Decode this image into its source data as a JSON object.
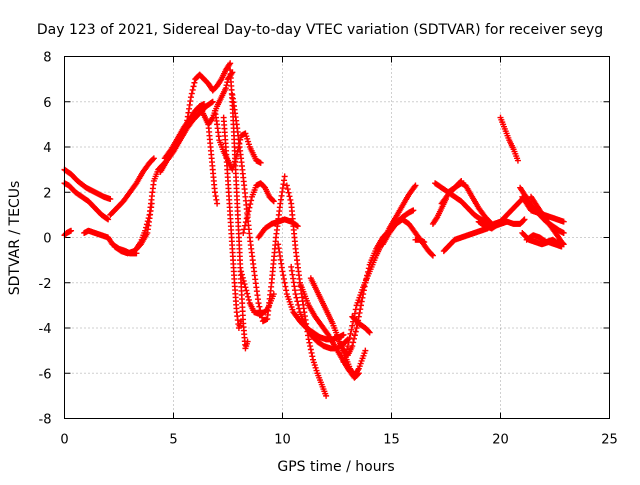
{
  "chart_data": {
    "type": "scatter",
    "title": "Day 123 of 2021, Sidereal Day-to-day VTEC variation (SDTVAR) for receiver seyg",
    "xlabel": "GPS time / hours",
    "ylabel": "SDTVAR / TECUs",
    "xlim": [
      0,
      25
    ],
    "ylim": [
      -8,
      8
    ],
    "x_ticks": [
      "0",
      "5",
      "10",
      "15",
      "20",
      "25"
    ],
    "y_ticks": [
      "-8",
      "-6",
      "-4",
      "-2",
      "0",
      "2",
      "4",
      "6",
      "8"
    ],
    "grid": true,
    "legend": "none",
    "marker": "plus",
    "color": "#ff0000",
    "series": [
      {
        "x": [
          0.0,
          0.3,
          0.6,
          1.0,
          1.4,
          1.8,
          2.1
        ],
        "y": [
          3.0,
          2.8,
          2.5,
          2.2,
          2.0,
          1.8,
          1.7
        ]
      },
      {
        "x": [
          0.0,
          0.2,
          0.5,
          0.8,
          1.1,
          1.4,
          1.7,
          2.0
        ],
        "y": [
          2.4,
          2.3,
          2.0,
          1.8,
          1.6,
          1.3,
          1.0,
          0.8
        ]
      },
      {
        "x": [
          0.0,
          0.1,
          0.3
        ],
        "y": [
          0.1,
          0.2,
          0.3
        ]
      },
      {
        "x": [
          0.9,
          1.1,
          1.4,
          1.7,
          2.0,
          2.2,
          2.5,
          2.8,
          3.0,
          3.3
        ],
        "y": [
          0.2,
          0.3,
          0.2,
          0.1,
          0.0,
          -0.3,
          -0.5,
          -0.6,
          -0.7,
          -0.7
        ]
      },
      {
        "x": [
          2.1,
          2.4,
          2.7,
          3.0,
          3.3,
          3.6,
          3.9,
          4.1
        ],
        "y": [
          1.0,
          1.3,
          1.6,
          2.0,
          2.4,
          2.9,
          3.3,
          3.5
        ]
      },
      {
        "x": [
          2.3,
          2.6,
          2.9,
          3.2,
          3.5,
          3.8,
          4.0
        ],
        "y": [
          -0.4,
          -0.6,
          -0.7,
          -0.6,
          -0.3,
          0.2,
          1.5
        ]
      },
      {
        "x": [
          3.3,
          3.5,
          3.7,
          3.9,
          4.1,
          4.3,
          4.6,
          4.9,
          5.2,
          5.5
        ],
        "y": [
          -0.5,
          -0.2,
          0.3,
          1.0,
          2.5,
          3.0,
          3.3,
          3.7,
          4.2,
          4.7
        ]
      },
      {
        "x": [
          4.4,
          4.7,
          5.0,
          5.3,
          5.6,
          5.9,
          6.2,
          6.5,
          6.8
        ],
        "y": [
          2.9,
          3.4,
          3.8,
          4.3,
          4.8,
          5.2,
          5.5,
          5.8,
          6.0
        ]
      },
      {
        "x": [
          4.6,
          4.9,
          5.2,
          5.5,
          5.8,
          6.0,
          6.2,
          6.4
        ],
        "y": [
          3.5,
          3.9,
          4.4,
          4.9,
          5.3,
          5.6,
          5.8,
          5.9
        ]
      },
      {
        "x": [
          5.6,
          5.8,
          6.0,
          6.2,
          6.4,
          6.6,
          6.8,
          7.0,
          7.2,
          7.4,
          7.6
        ],
        "y": [
          5.0,
          6.2,
          7.0,
          7.2,
          7.0,
          6.8,
          6.5,
          6.7,
          7.0,
          7.4,
          7.7
        ]
      },
      {
        "x": [
          6.2,
          6.4,
          6.6,
          6.8,
          7.0,
          7.2,
          7.4,
          7.5,
          7.7
        ],
        "y": [
          5.8,
          5.4,
          5.0,
          5.3,
          5.8,
          6.2,
          6.6,
          7.0,
          7.3
        ]
      },
      {
        "x": [
          6.6,
          6.7,
          6.8,
          6.9,
          7.0
        ],
        "y": [
          5.0,
          4.0,
          3.0,
          2.0,
          1.5
        ]
      },
      {
        "x": [
          6.9,
          7.0,
          7.1,
          7.3,
          7.5,
          7.7,
          7.9,
          8.1,
          8.3,
          8.5,
          8.8,
          9.0
        ],
        "y": [
          5.6,
          5.0,
          4.3,
          3.8,
          3.4,
          3.0,
          3.6,
          4.5,
          4.6,
          4.0,
          3.4,
          3.3
        ]
      },
      {
        "x": [
          7.6,
          7.7,
          7.8,
          7.9,
          8.0,
          8.1,
          8.2,
          8.3,
          8.4
        ],
        "y": [
          7.4,
          6.0,
          4.0,
          2.0,
          0.0,
          -2.0,
          -3.8,
          -4.9,
          -4.6
        ]
      },
      {
        "x": [
          7.3,
          7.4,
          7.5,
          7.6,
          7.7,
          7.8,
          7.9,
          8.0,
          8.1
        ],
        "y": [
          5.3,
          4.0,
          2.5,
          1.0,
          -0.5,
          -2.0,
          -3.3,
          -4.0,
          -3.7
        ]
      },
      {
        "x": [
          7.7,
          7.9,
          8.1,
          8.3,
          8.5,
          8.7,
          8.9,
          9.1,
          9.3,
          9.5,
          9.7,
          9.9,
          10.1
        ],
        "y": [
          6.3,
          5.0,
          3.5,
          1.8,
          0.0,
          -1.5,
          -2.9,
          -3.7,
          -3.6,
          -2.0,
          0.0,
          1.5,
          2.7
        ]
      },
      {
        "x": [
          8.1,
          8.3,
          8.5,
          8.7,
          9.0,
          9.3,
          9.6
        ],
        "y": [
          -1.5,
          -2.2,
          -2.9,
          -3.3,
          -3.4,
          -3.2,
          -2.5
        ]
      },
      {
        "x": [
          8.2,
          8.4,
          8.6,
          8.8,
          9.0,
          9.2,
          9.4,
          9.6
        ],
        "y": [
          0.2,
          1.0,
          1.8,
          2.3,
          2.4,
          2.2,
          1.8,
          1.6
        ]
      },
      {
        "x": [
          8.9,
          9.2,
          9.5,
          9.8,
          10.1,
          10.4,
          10.7
        ],
        "y": [
          0.0,
          0.4,
          0.6,
          0.7,
          0.8,
          0.7,
          0.5
        ]
      },
      {
        "x": [
          10.2,
          10.4,
          10.6,
          10.8,
          11.0,
          11.2,
          11.4,
          11.6,
          11.8,
          12.0
        ],
        "y": [
          2.3,
          1.5,
          -0.5,
          -2.0,
          -3.3,
          -4.5,
          -5.4,
          -6.0,
          -6.5,
          -7.0
        ]
      },
      {
        "x": [
          9.8,
          10.0,
          10.2,
          10.5,
          10.8,
          11.1,
          11.4,
          11.7,
          12.0,
          12.3,
          12.6,
          12.8
        ],
        "y": [
          -0.3,
          -1.5,
          -2.5,
          -3.3,
          -3.7,
          -4.0,
          -4.2,
          -4.4,
          -4.5,
          -4.5,
          -4.4,
          -4.3
        ]
      },
      {
        "x": [
          10.4,
          10.6,
          10.8,
          11.0,
          11.3,
          11.6,
          11.9,
          12.2,
          12.5,
          12.8,
          13.0
        ],
        "y": [
          -1.3,
          -2.5,
          -3.3,
          -3.8,
          -4.3,
          -4.6,
          -4.8,
          -4.9,
          -4.9,
          -4.7,
          -4.5
        ]
      },
      {
        "x": [
          10.8,
          11.0,
          11.2,
          11.5,
          11.8,
          12.1,
          12.4,
          12.7,
          13.0,
          13.3,
          13.5
        ],
        "y": [
          -2.0,
          -2.5,
          -3.0,
          -3.5,
          -3.9,
          -4.3,
          -4.8,
          -5.3,
          -5.8,
          -6.2,
          -6.0
        ]
      },
      {
        "x": [
          11.3,
          11.5,
          11.7,
          11.9,
          12.1,
          12.3,
          12.5,
          12.7,
          12.9,
          13.1,
          13.3,
          13.5,
          13.8
        ],
        "y": [
          -1.8,
          -2.2,
          -2.6,
          -3.0,
          -3.4,
          -3.8,
          -4.3,
          -4.8,
          -5.3,
          -5.8,
          -6.1,
          -5.8,
          -5.0
        ]
      },
      {
        "x": [
          12.6,
          12.8,
          13.0,
          13.2,
          13.4,
          13.6,
          13.8,
          14.0,
          14.3,
          14.6,
          14.9,
          15.2,
          15.5,
          15.8,
          16.0
        ],
        "y": [
          -4.6,
          -5.0,
          -5.2,
          -4.8,
          -4.0,
          -3.0,
          -2.0,
          -1.2,
          -0.5,
          0.0,
          0.3,
          0.6,
          0.9,
          1.1,
          1.2
        ]
      },
      {
        "x": [
          12.8,
          13.0,
          13.2,
          13.4,
          13.7,
          14.0,
          14.3,
          14.6,
          14.9,
          15.2,
          15.5,
          15.8,
          16.1
        ],
        "y": [
          -5.5,
          -4.8,
          -3.9,
          -3.0,
          -2.2,
          -1.5,
          -0.8,
          -0.2,
          0.4,
          0.9,
          1.4,
          1.9,
          2.3
        ]
      },
      {
        "x": [
          13.2,
          13.5,
          13.8,
          14.0
        ],
        "y": [
          -3.5,
          -3.8,
          -4.0,
          -4.2
        ]
      },
      {
        "x": [
          14.6,
          14.9,
          15.2,
          15.5,
          15.8,
          16.1,
          16.4,
          16.7,
          16.9
        ],
        "y": [
          -0.3,
          0.2,
          0.6,
          0.8,
          0.6,
          0.2,
          -0.2,
          -0.6,
          -0.8
        ]
      },
      {
        "x": [
          16.1,
          16.3,
          16.5
        ],
        "y": [
          -0.1,
          -0.1,
          -0.2
        ]
      },
      {
        "x": [
          16.9,
          17.1,
          17.3,
          17.5
        ],
        "y": [
          0.6,
          0.9,
          1.3,
          1.7
        ]
      },
      {
        "x": [
          17.0,
          17.3,
          17.6,
          17.9,
          18.2
        ],
        "y": [
          2.4,
          2.2,
          2.0,
          2.2,
          2.5
        ]
      },
      {
        "x": [
          17.4,
          17.6,
          17.9,
          18.2,
          18.5,
          18.8,
          19.1,
          19.4,
          19.7,
          20.0
        ],
        "y": [
          -0.6,
          -0.4,
          -0.1,
          0.0,
          0.1,
          0.2,
          0.3,
          0.4,
          0.6,
          0.7
        ]
      },
      {
        "x": [
          17.6,
          17.9,
          18.2,
          18.5,
          18.8,
          19.1,
          19.4,
          19.7,
          20.0,
          20.3,
          20.6,
          20.9,
          21.1
        ],
        "y": [
          2.0,
          1.8,
          1.6,
          1.3,
          1.0,
          0.8,
          0.6,
          0.5,
          0.6,
          0.7,
          0.6,
          0.6,
          0.8
        ]
      },
      {
        "x": [
          17.3,
          17.6,
          17.9,
          18.2,
          18.4,
          18.7,
          19.0,
          19.3,
          19.6
        ],
        "y": [
          1.5,
          1.9,
          2.2,
          2.4,
          2.3,
          1.8,
          1.3,
          0.9,
          0.6
        ]
      },
      {
        "x": [
          19.0,
          19.3,
          19.6,
          19.9,
          20.2,
          20.5,
          20.8,
          21.1
        ],
        "y": [
          0.7,
          0.5,
          0.4,
          0.6,
          0.9,
          1.2,
          1.5,
          1.8
        ]
      },
      {
        "x": [
          20.0,
          20.2,
          20.4,
          20.6,
          20.8
        ],
        "y": [
          5.3,
          4.8,
          4.3,
          3.9,
          3.4
        ]
      },
      {
        "x": [
          20.9,
          21.1,
          21.3,
          21.5,
          21.7,
          21.9,
          22.1,
          22.4,
          22.7,
          22.9
        ],
        "y": [
          2.2,
          1.9,
          1.6,
          1.3,
          1.1,
          0.9,
          0.7,
          0.5,
          0.3,
          0.2
        ]
      },
      {
        "x": [
          21.0,
          21.2,
          21.4,
          21.7,
          22.0,
          22.3,
          22.6,
          22.9
        ],
        "y": [
          1.8,
          1.5,
          1.2,
          1.1,
          1.0,
          0.9,
          0.8,
          0.7
        ]
      },
      {
        "x": [
          21.0,
          21.3,
          21.6,
          21.9,
          22.2,
          22.5,
          22.8
        ],
        "y": [
          0.2,
          -0.1,
          -0.2,
          -0.3,
          -0.2,
          -0.3,
          -0.4
        ]
      },
      {
        "x": [
          21.2,
          21.5,
          21.8,
          22.1,
          22.4,
          22.7
        ],
        "y": [
          -0.1,
          0.1,
          0.0,
          -0.2,
          -0.1,
          -0.3
        ]
      },
      {
        "x": [
          21.4,
          21.6,
          21.8,
          22.0,
          22.3,
          22.6,
          22.8,
          22.9
        ],
        "y": [
          1.8,
          1.5,
          1.2,
          0.9,
          0.5,
          0.1,
          -0.2,
          -0.3
        ]
      }
    ]
  }
}
